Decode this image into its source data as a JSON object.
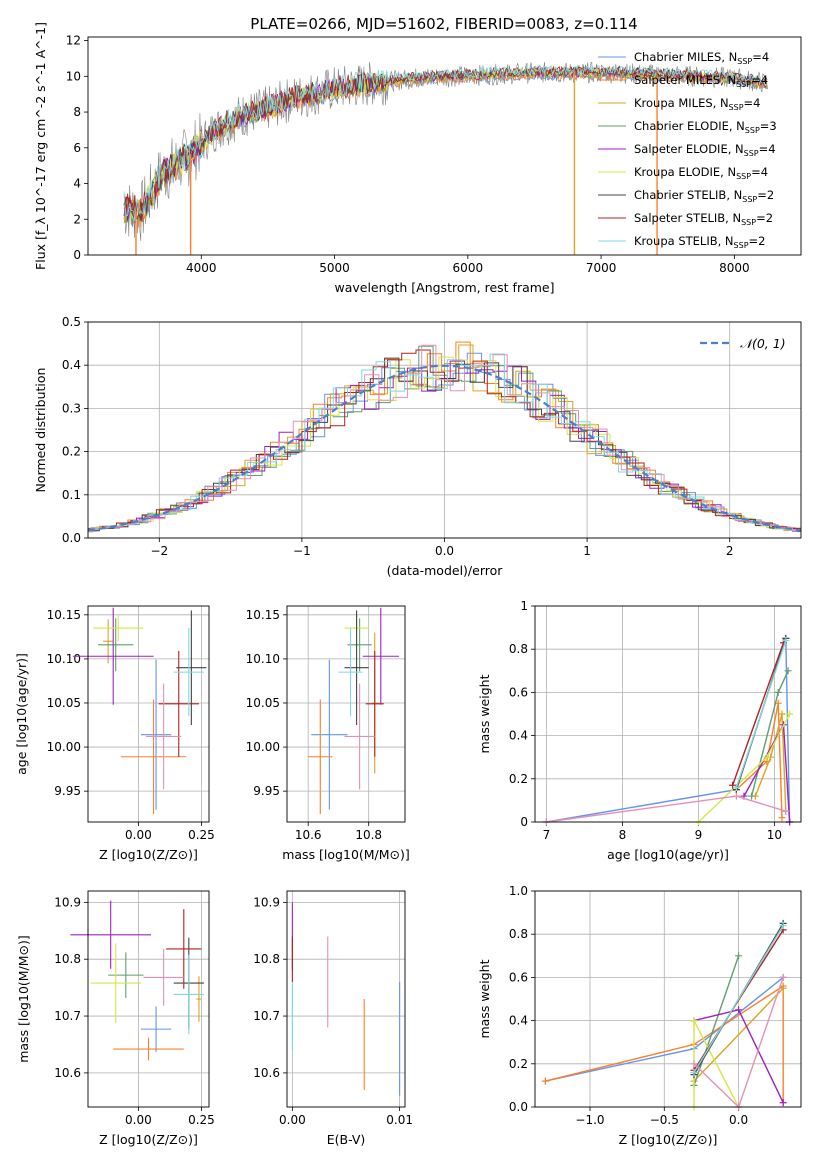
{
  "figure_title": "PLATE=0266, MJD=51602, FIBERID=0083, z=0.114",
  "colors": {
    "Chabrier MILES": "#6495ED",
    "Salpeter MILES": "#FF7F2A",
    "Kroupa MILES": "#DAA520",
    "Chabrier ELODIE": "#5F9E6E",
    "Salpeter ELODIE": "#A020C0",
    "Kroupa ELODIE": "#D4E84A",
    "Chabrier STELIB": "#444444",
    "Salpeter STELIB": "#B22222",
    "Kroupa STELIB": "#7FD8E0",
    "data": "#808080",
    "pink": "#E58FB8"
  },
  "chart_data": [
    {
      "id": "spectrum",
      "type": "line",
      "title": "PLATE=0266, MJD=51602, FIBERID=0083, z=0.114",
      "xlabel": "wavelength [Angstrom, rest frame]",
      "ylabel": "Flux [f_λ 10^-17 erg cm^-2 s^-1 A^-1]",
      "xlim": [
        3150,
        8500
      ],
      "ylim": [
        0,
        12.2
      ],
      "xticks": [
        4000,
        5000,
        6000,
        7000,
        8000
      ],
      "yticks": [
        0,
        2,
        4,
        6,
        8,
        10,
        12
      ],
      "legend_position": "right",
      "legend": [
        "Chabrier MILES, N_SSP=4",
        "Salpeter MILES, N_SSP=4",
        "Kroupa MILES, N_SSP=4",
        "Chabrier ELODIE, N_SSP=3",
        "Salpeter ELODIE, N_SSP=4",
        "Kroupa ELODIE, N_SSP=4",
        "Chabrier STELIB, N_SSP=2",
        "Salpeter STELIB, N_SSP=2",
        "Kroupa STELIB, N_SSP=2"
      ],
      "continuum": {
        "x": [
          3420,
          3550,
          3700,
          3900,
          4100,
          4300,
          4500,
          4700,
          5000,
          5300,
          5600,
          5900,
          6200,
          6500,
          6800,
          7100,
          7400,
          7700,
          8000,
          8250
        ],
        "y": [
          2.6,
          2.4,
          4.5,
          5.5,
          7.0,
          7.8,
          8.2,
          8.8,
          9.3,
          9.6,
          9.9,
          10.0,
          10.1,
          10.2,
          10.2,
          10.2,
          10.1,
          10.0,
          9.9,
          9.6
        ]
      }
    },
    {
      "id": "residuals",
      "type": "line",
      "xlabel": "(data-model)/error",
      "ylabel": "Normed distribution",
      "xlim": [
        -2.5,
        2.5
      ],
      "ylim": [
        0,
        0.5
      ],
      "xticks": [
        -2,
        -1,
        0,
        1,
        2
      ],
      "yticks": [
        0.0,
        0.1,
        0.2,
        0.3,
        0.4,
        0.5
      ],
      "grid": true,
      "legend": [
        "𝒩(0, 1)"
      ],
      "legend_position": "top-right"
    },
    {
      "id": "age-vs-Z",
      "type": "scatter",
      "xlabel": "Z [log10(Z/Z⊙)]",
      "ylabel": "age  [log10(age/yr)]",
      "xlim": [
        -0.2,
        0.28
      ],
      "ylim": [
        9.915,
        10.16
      ],
      "xticks": [
        0.0,
        0.25
      ],
      "yticks": [
        9.95,
        10.0,
        10.05,
        10.1,
        10.15
      ],
      "grid": true,
      "points": [
        {
          "model": "Chabrier MILES",
          "x": 0.07,
          "xerr": 0.06,
          "y": 10.014,
          "yerr": 0.085
        },
        {
          "model": "Salpeter MILES",
          "x": 0.06,
          "xerr": 0.13,
          "y": 9.989,
          "yerr": 0.065
        },
        {
          "model": "Kroupa MILES",
          "x": -0.12,
          "xerr": 0.02,
          "y": 10.12,
          "yerr": 0.025
        },
        {
          "model": "Chabrier ELODIE",
          "x": -0.09,
          "xerr": 0.07,
          "y": 10.116,
          "yerr": 0.03
        },
        {
          "model": "Salpeter ELODIE",
          "x": -0.1,
          "xerr": 0.16,
          "y": 10.103,
          "yerr": 0.055
        },
        {
          "model": "Kroupa ELODIE",
          "x": -0.08,
          "xerr": 0.1,
          "y": 10.135,
          "yerr": 0.015
        },
        {
          "model": "Chabrier STELIB",
          "x": 0.21,
          "xerr": 0.06,
          "y": 10.09,
          "yerr": 0.065
        },
        {
          "model": "Salpeter STELIB",
          "x": 0.16,
          "xerr": 0.08,
          "y": 10.049,
          "yerr": 0.06
        },
        {
          "model": "Kroupa STELIB",
          "x": 0.2,
          "xerr": 0.06,
          "y": 10.085,
          "yerr": 0.05
        },
        {
          "model": "pink",
          "x": 0.1,
          "xerr": 0.07,
          "y": 10.012,
          "yerr": 0.06
        }
      ]
    },
    {
      "id": "age-vs-mass",
      "type": "scatter",
      "xlabel": "mass [log10(M/M⊙)]",
      "xlim": [
        10.53,
        10.92
      ],
      "ylim": [
        9.915,
        10.16
      ],
      "xticks": [
        10.6,
        10.8
      ],
      "yticks": [
        9.95,
        10.0,
        10.05,
        10.1,
        10.15
      ],
      "grid": true,
      "points": [
        {
          "model": "Chabrier MILES",
          "x": 10.67,
          "xerr": 0.06,
          "y": 10.014,
          "yerr": 0.085
        },
        {
          "model": "Salpeter MILES",
          "x": 10.64,
          "xerr": 0.04,
          "y": 9.989,
          "yerr": 0.065
        },
        {
          "model": "Kroupa MILES",
          "x": 10.82,
          "xerr": 0.01,
          "y": 10.05,
          "yerr": 0.08
        },
        {
          "model": "Chabrier ELODIE",
          "x": 10.77,
          "xerr": 0.04,
          "y": 10.116,
          "yerr": 0.03
        },
        {
          "model": "Salpeter ELODIE",
          "x": 10.84,
          "xerr": 0.06,
          "y": 10.103,
          "yerr": 0.055
        },
        {
          "model": "Kroupa ELODIE",
          "x": 10.76,
          "xerr": 0.04,
          "y": 10.135,
          "yerr": 0.015
        },
        {
          "model": "Chabrier STELIB",
          "x": 10.76,
          "xerr": 0.04,
          "y": 10.09,
          "yerr": 0.065
        },
        {
          "model": "Salpeter STELIB",
          "x": 10.82,
          "xerr": 0.03,
          "y": 10.049,
          "yerr": 0.06
        },
        {
          "model": "Kroupa STELIB",
          "x": 10.74,
          "xerr": 0.04,
          "y": 10.085,
          "yerr": 0.05
        },
        {
          "model": "pink",
          "x": 10.77,
          "xerr": 0.05,
          "y": 10.012,
          "yerr": 0.06
        }
      ]
    },
    {
      "id": "weight-vs-age",
      "type": "line",
      "xlabel": "age  [log10(age/yr)]",
      "ylabel": "mass weight",
      "xlim": [
        6.85,
        10.35
      ],
      "ylim": [
        0,
        1.0
      ],
      "xticks": [
        7,
        8,
        9,
        10
      ],
      "yticks": [
        0.0,
        0.2,
        0.4,
        0.6,
        0.8,
        1.0
      ],
      "grid": true,
      "series": [
        {
          "model": "Chabrier MILES",
          "x": [
            7.0,
            9.5,
            10.15,
            10.2
          ],
          "y": [
            0.0,
            0.15,
            0.85,
            0.0
          ]
        },
        {
          "model": "Salpeter MILES",
          "x": [
            9.5,
            9.9,
            10.05,
            10.1
          ],
          "y": [
            0.15,
            0.28,
            0.55,
            0.02
          ]
        },
        {
          "model": "Kroupa MILES",
          "x": [
            9.75,
            9.95,
            10.1,
            10.15
          ],
          "y": [
            0.12,
            0.3,
            0.5,
            0.05
          ]
        },
        {
          "model": "Chabrier ELODIE",
          "x": [
            9.7,
            10.05,
            10.18
          ],
          "y": [
            0.12,
            0.6,
            0.7
          ]
        },
        {
          "model": "Salpeter ELODIE",
          "x": [
            9.6,
            10.12,
            10.2
          ],
          "y": [
            0.12,
            0.45,
            0.0
          ]
        },
        {
          "model": "Kroupa ELODIE",
          "x": [
            9.0,
            9.9,
            10.2
          ],
          "y": [
            0.0,
            0.3,
            0.5
          ]
        },
        {
          "model": "Chabrier STELIB",
          "x": [
            9.5,
            10.15
          ],
          "y": [
            0.15,
            0.85
          ]
        },
        {
          "model": "Salpeter STELIB",
          "x": [
            9.45,
            10.12
          ],
          "y": [
            0.17,
            0.83
          ]
        },
        {
          "model": "Kroupa STELIB",
          "x": [
            9.5,
            10.15
          ],
          "y": [
            0.16,
            0.84
          ]
        },
        {
          "model": "pink",
          "x": [
            7.0,
            9.5,
            10.15
          ],
          "y": [
            0.0,
            0.12,
            0.05
          ]
        }
      ]
    },
    {
      "id": "mass-vs-Z",
      "type": "scatter",
      "xlabel": "Z [log10(Z/Z⊙)]",
      "ylabel": "mass [log10(M/M⊙)]",
      "xlim": [
        -0.2,
        0.28
      ],
      "ylim": [
        10.54,
        10.92
      ],
      "xticks": [
        0.0,
        0.25
      ],
      "yticks": [
        10.6,
        10.7,
        10.8,
        10.9
      ],
      "grid": true,
      "points": [
        {
          "model": "Chabrier MILES",
          "x": 0.07,
          "xerr": 0.06,
          "y": 10.677,
          "yerr": 0.04
        },
        {
          "model": "Salpeter MILES",
          "x": 0.04,
          "xerr": 0.14,
          "y": 10.642,
          "yerr": 0.02
        },
        {
          "model": "Kroupa MILES",
          "x": 0.24,
          "xerr": 0.01,
          "y": 10.73,
          "yerr": 0.04
        },
        {
          "model": "Chabrier ELODIE",
          "x": -0.05,
          "xerr": 0.07,
          "y": 10.772,
          "yerr": 0.04
        },
        {
          "model": "Salpeter ELODIE",
          "x": -0.11,
          "xerr": 0.16,
          "y": 10.843,
          "yerr": 0.06
        },
        {
          "model": "Kroupa ELODIE",
          "x": -0.09,
          "xerr": 0.1,
          "y": 10.758,
          "yerr": 0.07
        },
        {
          "model": "Chabrier STELIB",
          "x": 0.2,
          "xerr": 0.06,
          "y": 10.758,
          "yerr": 0.08
        },
        {
          "model": "Salpeter STELIB",
          "x": 0.18,
          "xerr": 0.07,
          "y": 10.818,
          "yerr": 0.07
        },
        {
          "model": "Kroupa STELIB",
          "x": 0.2,
          "xerr": 0.06,
          "y": 10.738,
          "yerr": 0.07
        },
        {
          "model": "pink",
          "x": 0.1,
          "xerr": 0.08,
          "y": 10.768,
          "yerr": 0.05
        }
      ]
    },
    {
      "id": "mass-vs-ebv",
      "type": "scatter",
      "xlabel": "E(B-V)",
      "xlim": [
        -0.0005,
        0.0105
      ],
      "ylim": [
        10.54,
        10.92
      ],
      "xticks": [
        0.0,
        0.01
      ],
      "yticks": [
        10.6,
        10.7,
        10.8,
        10.9
      ],
      "grid": true,
      "points": [
        {
          "model": "Chabrier MILES",
          "x": 0.01,
          "y": 10.66,
          "yerr": 0.1
        },
        {
          "model": "Salpeter MILES",
          "x": 0.0067,
          "y": 10.65,
          "yerr": 0.08
        },
        {
          "model": "Salpeter ELODIE",
          "x": 0.0,
          "y": 10.84,
          "yerr": 0.06
        },
        {
          "model": "Salpeter STELIB",
          "x": 0.0,
          "y": 10.8,
          "yerr": 0.04
        },
        {
          "model": "Kroupa STELIB",
          "x": 0.0,
          "y": 10.7,
          "yerr": 0.06
        },
        {
          "model": "pink",
          "x": 0.0033,
          "y": 10.76,
          "yerr": 0.08
        }
      ]
    },
    {
      "id": "weight-vs-Z",
      "type": "line",
      "xlabel": "Z [log10(Z/Z⊙)]",
      "ylabel": "mass weight",
      "xlim": [
        -1.37,
        0.42
      ],
      "ylim": [
        0,
        1.0
      ],
      "xticks": [
        -1.0,
        -0.5,
        0.0
      ],
      "yticks": [
        0.0,
        0.2,
        0.4,
        0.6,
        0.8,
        1.0
      ],
      "grid": true,
      "series": [
        {
          "model": "Chabrier MILES",
          "x": [
            -1.3,
            -0.3,
            0.3
          ],
          "y": [
            0.12,
            0.27,
            0.6
          ]
        },
        {
          "model": "Salpeter MILES",
          "x": [
            -1.3,
            -0.3,
            0.3,
            0.3
          ],
          "y": [
            0.12,
            0.29,
            0.56,
            0.02
          ]
        },
        {
          "model": "Kroupa MILES",
          "x": [
            -0.3,
            0.3
          ],
          "y": [
            0.12,
            0.55
          ]
        },
        {
          "model": "Chabrier ELODIE",
          "x": [
            -0.3,
            0.0
          ],
          "y": [
            0.1,
            0.7
          ]
        },
        {
          "model": "Salpeter ELODIE",
          "x": [
            -0.3,
            0.0,
            0.3
          ],
          "y": [
            0.4,
            0.45,
            0.02
          ]
        },
        {
          "model": "Kroupa ELODIE",
          "x": [
            -0.3,
            -0.3,
            0.0
          ],
          "y": [
            0.0,
            0.4,
            0.0
          ]
        },
        {
          "model": "Chabrier STELIB",
          "x": [
            -0.3,
            0.3
          ],
          "y": [
            0.15,
            0.85
          ]
        },
        {
          "model": "Salpeter STELIB",
          "x": [
            -0.3,
            0.3
          ],
          "y": [
            0.17,
            0.82
          ]
        },
        {
          "model": "Kroupa STELIB",
          "x": [
            -0.3,
            0.3
          ],
          "y": [
            0.16,
            0.84
          ]
        },
        {
          "model": "pink",
          "x": [
            -0.3,
            0.0,
            0.3
          ],
          "y": [
            0.2,
            0.0,
            0.6
          ]
        }
      ]
    }
  ]
}
